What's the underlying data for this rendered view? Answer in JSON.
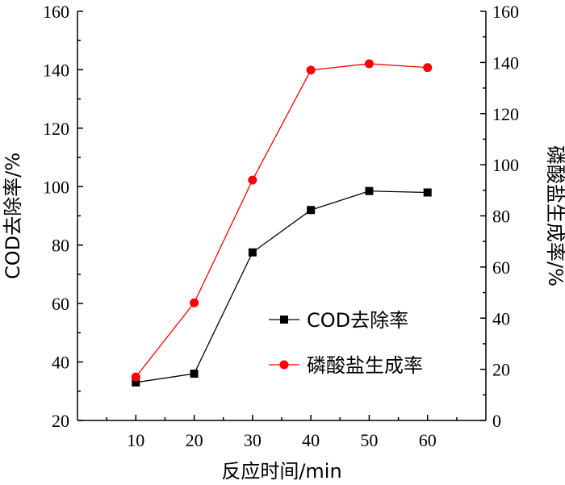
{
  "chart_data": {
    "type": "line",
    "xlabel": "反应时间/min",
    "ylabel_left": "COD去除率/%",
    "ylabel_right": "磷酸盐生成率/%",
    "x": [
      10,
      20,
      30,
      40,
      50,
      60
    ],
    "xlim": [
      0,
      70
    ],
    "xticks": [
      "10",
      "20",
      "30",
      "40",
      "50",
      "60"
    ],
    "ylim_left": [
      20,
      160
    ],
    "yticks_left": [
      "20",
      "40",
      "60",
      "80",
      "100",
      "120",
      "140",
      "160"
    ],
    "ylim_right": [
      0,
      160
    ],
    "yticks_right": [
      "0",
      "20",
      "40",
      "60",
      "80",
      "100",
      "120",
      "140",
      "160"
    ],
    "grid": false,
    "legend_position": "bottom-right",
    "series": [
      {
        "name": "COD去除率",
        "axis": "left",
        "marker": "square",
        "color": "#000000",
        "values": [
          33,
          36,
          77.5,
          92,
          98.5,
          98
        ]
      },
      {
        "name": "磷酸盐生成率",
        "axis": "right",
        "marker": "circle",
        "color": "#ff0000",
        "values": [
          17,
          46,
          94,
          137,
          139.5,
          138
        ]
      }
    ]
  }
}
